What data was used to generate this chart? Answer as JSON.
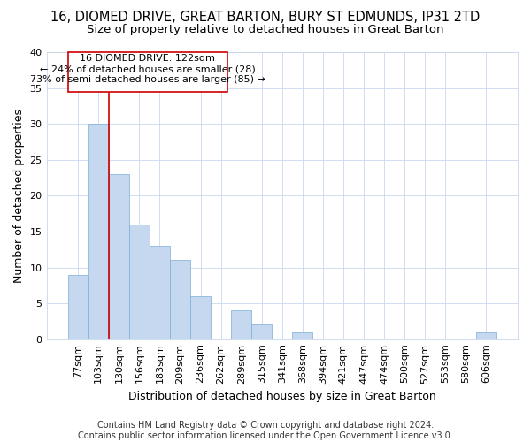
{
  "title_line1": "16, DIOMED DRIVE, GREAT BARTON, BURY ST EDMUNDS, IP31 2TD",
  "title_line2": "Size of property relative to detached houses in Great Barton",
  "xlabel": "Distribution of detached houses by size in Great Barton",
  "ylabel": "Number of detached properties",
  "categories": [
    "77sqm",
    "103sqm",
    "130sqm",
    "156sqm",
    "183sqm",
    "209sqm",
    "236sqm",
    "262sqm",
    "289sqm",
    "315sqm",
    "341sqm",
    "368sqm",
    "394sqm",
    "421sqm",
    "447sqm",
    "474sqm",
    "500sqm",
    "527sqm",
    "553sqm",
    "580sqm",
    "606sqm"
  ],
  "values": [
    9,
    30,
    23,
    16,
    13,
    11,
    6,
    0,
    4,
    2,
    0,
    1,
    0,
    0,
    0,
    0,
    0,
    0,
    0,
    0,
    1
  ],
  "bar_color": "#c5d8f0",
  "bar_edge_color": "#7aaed4",
  "vline_x_index": 1.5,
  "vline_color": "#cc0000",
  "annotation_text": "16 DIOMED DRIVE: 122sqm\n← 24% of detached houses are smaller (28)\n73% of semi-detached houses are larger (85) →",
  "annotation_box_color": "#ffffff",
  "annotation_box_edge": "#cc0000",
  "ylim": [
    0,
    40
  ],
  "yticks": [
    0,
    5,
    10,
    15,
    20,
    25,
    30,
    35,
    40
  ],
  "footer_text": "Contains HM Land Registry data © Crown copyright and database right 2024.\nContains public sector information licensed under the Open Government Licence v3.0.",
  "background_color": "#ffffff",
  "grid_color": "#c8d8ec",
  "title_fontsize": 10.5,
  "subtitle_fontsize": 9.5,
  "axis_label_fontsize": 9,
  "tick_fontsize": 8,
  "footer_fontsize": 7
}
